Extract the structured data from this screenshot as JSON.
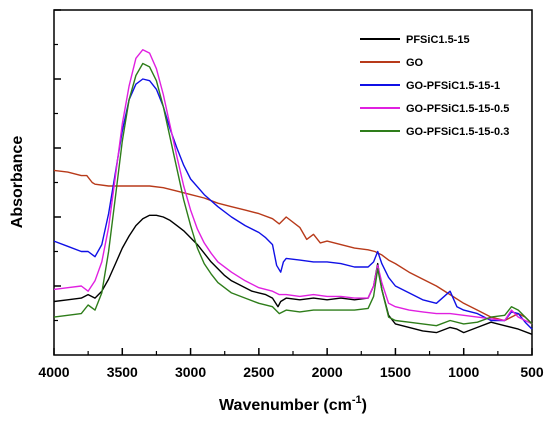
{
  "chart_data": {
    "type": "line",
    "title": "",
    "xlabel_text": "Wavenumber (cm",
    "xlabel_sup": "-1",
    "xlabel_close": ")",
    "ylabel": "Absorbance",
    "xlim": [
      4000,
      500
    ],
    "ylim": [
      0,
      1
    ],
    "x_reversed": true,
    "grid": false,
    "legend_position": "top-right",
    "x_ticks": [
      4000,
      3500,
      3000,
      2500,
      2000,
      1500,
      1000,
      500
    ],
    "x_tick_labels": [
      "4000",
      "3500",
      "3000",
      "2500",
      "2000",
      "1500",
      "1000",
      "500"
    ],
    "y_ticks": [
      0.2,
      0.4,
      0.6,
      0.8,
      1.0
    ],
    "series": [
      {
        "name": "PFSiC1.5-15",
        "color": "#000000",
        "points": [
          [
            4000,
            0.155
          ],
          [
            3900,
            0.16
          ],
          [
            3800,
            0.165
          ],
          [
            3750,
            0.175
          ],
          [
            3700,
            0.165
          ],
          [
            3650,
            0.185
          ],
          [
            3600,
            0.22
          ],
          [
            3550,
            0.265
          ],
          [
            3500,
            0.31
          ],
          [
            3450,
            0.345
          ],
          [
            3400,
            0.375
          ],
          [
            3350,
            0.395
          ],
          [
            3300,
            0.405
          ],
          [
            3250,
            0.405
          ],
          [
            3200,
            0.4
          ],
          [
            3150,
            0.39
          ],
          [
            3100,
            0.375
          ],
          [
            3050,
            0.36
          ],
          [
            3000,
            0.34
          ],
          [
            2950,
            0.32
          ],
          [
            2900,
            0.295
          ],
          [
            2850,
            0.27
          ],
          [
            2800,
            0.25
          ],
          [
            2750,
            0.23
          ],
          [
            2700,
            0.215
          ],
          [
            2650,
            0.205
          ],
          [
            2600,
            0.195
          ],
          [
            2550,
            0.185
          ],
          [
            2500,
            0.18
          ],
          [
            2450,
            0.175
          ],
          [
            2400,
            0.165
          ],
          [
            2360,
            0.14
          ],
          [
            2340,
            0.155
          ],
          [
            2300,
            0.165
          ],
          [
            2200,
            0.16
          ],
          [
            2100,
            0.165
          ],
          [
            2000,
            0.16
          ],
          [
            1900,
            0.165
          ],
          [
            1800,
            0.16
          ],
          [
            1700,
            0.165
          ],
          [
            1660,
            0.2
          ],
          [
            1630,
            0.265
          ],
          [
            1600,
            0.19
          ],
          [
            1550,
            0.115
          ],
          [
            1500,
            0.09
          ],
          [
            1400,
            0.08
          ],
          [
            1300,
            0.07
          ],
          [
            1200,
            0.065
          ],
          [
            1100,
            0.08
          ],
          [
            1050,
            0.075
          ],
          [
            1000,
            0.065
          ],
          [
            900,
            0.08
          ],
          [
            800,
            0.095
          ],
          [
            700,
            0.085
          ],
          [
            600,
            0.075
          ],
          [
            500,
            0.06
          ]
        ]
      },
      {
        "name": "GO",
        "color": "#b83a1a",
        "points": [
          [
            4000,
            0.535
          ],
          [
            3900,
            0.53
          ],
          [
            3800,
            0.52
          ],
          [
            3760,
            0.52
          ],
          [
            3720,
            0.5
          ],
          [
            3700,
            0.495
          ],
          [
            3600,
            0.49
          ],
          [
            3500,
            0.49
          ],
          [
            3400,
            0.49
          ],
          [
            3300,
            0.49
          ],
          [
            3200,
            0.485
          ],
          [
            3100,
            0.475
          ],
          [
            3000,
            0.465
          ],
          [
            2900,
            0.455
          ],
          [
            2800,
            0.44
          ],
          [
            2700,
            0.43
          ],
          [
            2600,
            0.42
          ],
          [
            2500,
            0.41
          ],
          [
            2400,
            0.395
          ],
          [
            2350,
            0.38
          ],
          [
            2300,
            0.4
          ],
          [
            2200,
            0.37
          ],
          [
            2150,
            0.335
          ],
          [
            2100,
            0.35
          ],
          [
            2050,
            0.325
          ],
          [
            2000,
            0.33
          ],
          [
            1900,
            0.32
          ],
          [
            1800,
            0.31
          ],
          [
            1700,
            0.305
          ],
          [
            1650,
            0.3
          ],
          [
            1600,
            0.29
          ],
          [
            1550,
            0.275
          ],
          [
            1500,
            0.265
          ],
          [
            1400,
            0.24
          ],
          [
            1300,
            0.22
          ],
          [
            1200,
            0.2
          ],
          [
            1100,
            0.175
          ],
          [
            1000,
            0.15
          ],
          [
            900,
            0.13
          ],
          [
            800,
            0.11
          ],
          [
            700,
            0.1
          ],
          [
            600,
            0.12
          ],
          [
            550,
            0.11
          ],
          [
            500,
            0.09
          ]
        ]
      },
      {
        "name": "GO-PFSiC1.5-15-1",
        "color": "#1010e6",
        "points": [
          [
            4000,
            0.33
          ],
          [
            3900,
            0.315
          ],
          [
            3800,
            0.3
          ],
          [
            3750,
            0.3
          ],
          [
            3700,
            0.285
          ],
          [
            3650,
            0.32
          ],
          [
            3600,
            0.41
          ],
          [
            3550,
            0.53
          ],
          [
            3500,
            0.65
          ],
          [
            3450,
            0.74
          ],
          [
            3400,
            0.785
          ],
          [
            3350,
            0.8
          ],
          [
            3300,
            0.795
          ],
          [
            3250,
            0.77
          ],
          [
            3200,
            0.72
          ],
          [
            3150,
            0.655
          ],
          [
            3100,
            0.6
          ],
          [
            3050,
            0.55
          ],
          [
            3000,
            0.51
          ],
          [
            2900,
            0.465
          ],
          [
            2800,
            0.43
          ],
          [
            2700,
            0.4
          ],
          [
            2600,
            0.375
          ],
          [
            2500,
            0.355
          ],
          [
            2450,
            0.34
          ],
          [
            2400,
            0.32
          ],
          [
            2370,
            0.26
          ],
          [
            2340,
            0.24
          ],
          [
            2320,
            0.27
          ],
          [
            2300,
            0.28
          ],
          [
            2200,
            0.275
          ],
          [
            2100,
            0.27
          ],
          [
            2000,
            0.27
          ],
          [
            1900,
            0.265
          ],
          [
            1800,
            0.255
          ],
          [
            1700,
            0.255
          ],
          [
            1660,
            0.27
          ],
          [
            1630,
            0.3
          ],
          [
            1600,
            0.265
          ],
          [
            1550,
            0.225
          ],
          [
            1500,
            0.2
          ],
          [
            1400,
            0.18
          ],
          [
            1300,
            0.16
          ],
          [
            1200,
            0.15
          ],
          [
            1100,
            0.185
          ],
          [
            1050,
            0.14
          ],
          [
            1000,
            0.13
          ],
          [
            900,
            0.12
          ],
          [
            800,
            0.1
          ],
          [
            700,
            0.1
          ],
          [
            650,
            0.125
          ],
          [
            600,
            0.12
          ],
          [
            550,
            0.095
          ],
          [
            500,
            0.075
          ]
        ]
      },
      {
        "name": "GO-PFSiC1.5-15-0.5",
        "color": "#e020e0",
        "points": [
          [
            4000,
            0.19
          ],
          [
            3900,
            0.195
          ],
          [
            3800,
            0.2
          ],
          [
            3750,
            0.185
          ],
          [
            3700,
            0.215
          ],
          [
            3650,
            0.27
          ],
          [
            3600,
            0.37
          ],
          [
            3550,
            0.52
          ],
          [
            3500,
            0.67
          ],
          [
            3450,
            0.78
          ],
          [
            3400,
            0.86
          ],
          [
            3350,
            0.885
          ],
          [
            3300,
            0.875
          ],
          [
            3250,
            0.83
          ],
          [
            3200,
            0.755
          ],
          [
            3150,
            0.665
          ],
          [
            3100,
            0.575
          ],
          [
            3050,
            0.49
          ],
          [
            3000,
            0.42
          ],
          [
            2950,
            0.365
          ],
          [
            2900,
            0.325
          ],
          [
            2850,
            0.295
          ],
          [
            2800,
            0.27
          ],
          [
            2700,
            0.24
          ],
          [
            2600,
            0.215
          ],
          [
            2500,
            0.195
          ],
          [
            2400,
            0.185
          ],
          [
            2350,
            0.175
          ],
          [
            2300,
            0.175
          ],
          [
            2200,
            0.17
          ],
          [
            2100,
            0.175
          ],
          [
            2000,
            0.17
          ],
          [
            1900,
            0.17
          ],
          [
            1800,
            0.165
          ],
          [
            1700,
            0.165
          ],
          [
            1660,
            0.2
          ],
          [
            1630,
            0.26
          ],
          [
            1600,
            0.21
          ],
          [
            1550,
            0.15
          ],
          [
            1500,
            0.14
          ],
          [
            1400,
            0.13
          ],
          [
            1300,
            0.125
          ],
          [
            1200,
            0.12
          ],
          [
            1100,
            0.12
          ],
          [
            1000,
            0.115
          ],
          [
            900,
            0.11
          ],
          [
            800,
            0.105
          ],
          [
            700,
            0.1
          ],
          [
            650,
            0.13
          ],
          [
            600,
            0.11
          ],
          [
            500,
            0.09
          ]
        ]
      },
      {
        "name": "GO-PFSiC1.5-15-0.3",
        "color": "#2e7d1a",
        "points": [
          [
            4000,
            0.11
          ],
          [
            3900,
            0.115
          ],
          [
            3800,
            0.12
          ],
          [
            3750,
            0.145
          ],
          [
            3700,
            0.13
          ],
          [
            3650,
            0.18
          ],
          [
            3600,
            0.3
          ],
          [
            3550,
            0.46
          ],
          [
            3500,
            0.62
          ],
          [
            3450,
            0.74
          ],
          [
            3400,
            0.81
          ],
          [
            3350,
            0.845
          ],
          [
            3300,
            0.835
          ],
          [
            3250,
            0.795
          ],
          [
            3200,
            0.72
          ],
          [
            3150,
            0.63
          ],
          [
            3100,
            0.54
          ],
          [
            3050,
            0.45
          ],
          [
            3000,
            0.375
          ],
          [
            2950,
            0.31
          ],
          [
            2900,
            0.265
          ],
          [
            2850,
            0.235
          ],
          [
            2800,
            0.21
          ],
          [
            2700,
            0.18
          ],
          [
            2600,
            0.165
          ],
          [
            2500,
            0.15
          ],
          [
            2400,
            0.14
          ],
          [
            2350,
            0.12
          ],
          [
            2300,
            0.13
          ],
          [
            2200,
            0.125
          ],
          [
            2100,
            0.13
          ],
          [
            2000,
            0.13
          ],
          [
            1900,
            0.13
          ],
          [
            1800,
            0.13
          ],
          [
            1700,
            0.135
          ],
          [
            1660,
            0.17
          ],
          [
            1630,
            0.25
          ],
          [
            1600,
            0.19
          ],
          [
            1550,
            0.11
          ],
          [
            1500,
            0.1
          ],
          [
            1400,
            0.095
          ],
          [
            1300,
            0.09
          ],
          [
            1200,
            0.085
          ],
          [
            1100,
            0.1
          ],
          [
            1000,
            0.09
          ],
          [
            900,
            0.095
          ],
          [
            800,
            0.11
          ],
          [
            700,
            0.115
          ],
          [
            650,
            0.14
          ],
          [
            600,
            0.13
          ],
          [
            500,
            0.09
          ]
        ]
      }
    ]
  }
}
